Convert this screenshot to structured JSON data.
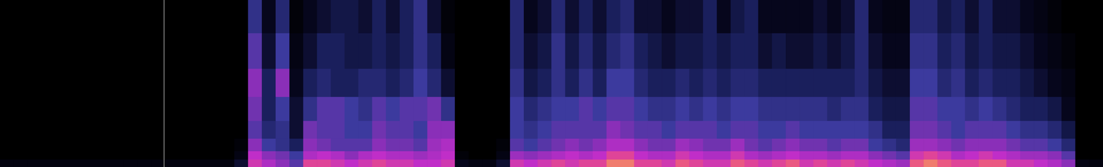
{
  "chart_data": {
    "type": "heatmap",
    "y_edges": [
      0,
      0.35,
      0.75,
      1.35,
      2.2,
      3.35,
      4.7,
      6.4,
      8
    ],
    "ylim": [
      0,
      8
    ],
    "color_range": [
      0,
      1
    ],
    "cursor_x": 11.4,
    "tick_labels": false,
    "grid": false,
    "cells": [
      [
        0.08,
        0.08,
        0.08,
        0.08,
        0.08,
        0.08,
        0.08,
        0.08,
        0.08,
        0.08,
        0.08,
        0.08,
        0.08,
        0.08,
        0.08,
        0.08,
        0.08,
        0.2,
        0.8,
        0.7,
        0.6,
        0.5,
        0.85,
        0.85,
        0.8,
        0.75,
        0.8,
        0.85,
        0.8,
        0.8,
        0.75,
        0.75,
        0.8,
        0.15,
        0.1,
        0.1,
        0.2,
        0.8,
        0.75,
        0.8,
        0.85,
        0.8,
        0.85,
        0.85,
        0.95,
        0.95,
        0.85,
        0.85,
        0.8,
        0.9,
        0.85,
        0.8,
        0.8,
        0.9,
        0.85,
        0.8,
        0.85,
        0.9,
        0.8,
        0.85,
        0.8,
        0.85,
        0.8,
        0.75,
        0.7,
        0.65,
        0.9,
        0.95,
        0.9,
        0.85,
        0.85,
        0.9,
        0.9,
        0.8,
        0.8,
        0.75,
        0.7,
        0.6,
        0.1,
        0.08
      ],
      [
        0,
        0,
        0,
        0,
        0,
        0,
        0,
        0,
        0,
        0,
        0,
        0,
        0,
        0,
        0,
        0,
        0,
        0.1,
        0.75,
        0.6,
        0.55,
        0.45,
        0.7,
        0.75,
        0.7,
        0.6,
        0.7,
        0.75,
        0.7,
        0.7,
        0.65,
        0.7,
        0.75,
        0.05,
        0,
        0,
        0.1,
        0.65,
        0.6,
        0.65,
        0.7,
        0.75,
        0.7,
        0.75,
        0.85,
        0.85,
        0.75,
        0.7,
        0.7,
        0.8,
        0.75,
        0.7,
        0.7,
        0.8,
        0.7,
        0.65,
        0.7,
        0.75,
        0.7,
        0.7,
        0.65,
        0.7,
        0.7,
        0.6,
        0.55,
        0.5,
        0.8,
        0.85,
        0.8,
        0.7,
        0.75,
        0.8,
        0.75,
        0.7,
        0.65,
        0.65,
        0.6,
        0.5,
        0,
        0
      ],
      [
        0,
        0,
        0,
        0,
        0,
        0,
        0,
        0,
        0,
        0,
        0,
        0,
        0,
        0,
        0,
        0,
        0,
        0.05,
        0.6,
        0.45,
        0.4,
        0.3,
        0.6,
        0.55,
        0.5,
        0.5,
        0.5,
        0.6,
        0.55,
        0.55,
        0.5,
        0.65,
        0.7,
        0,
        0,
        0,
        0.05,
        0.5,
        0.45,
        0.5,
        0.55,
        0.6,
        0.55,
        0.6,
        0.7,
        0.7,
        0.6,
        0.55,
        0.55,
        0.65,
        0.6,
        0.55,
        0.55,
        0.65,
        0.55,
        0.5,
        0.55,
        0.6,
        0.55,
        0.55,
        0.5,
        0.55,
        0.55,
        0.45,
        0.4,
        0.35,
        0.65,
        0.65,
        0.6,
        0.55,
        0.6,
        0.6,
        0.6,
        0.55,
        0.5,
        0.5,
        0.45,
        0.35,
        0,
        0
      ],
      [
        0,
        0,
        0,
        0,
        0,
        0,
        0,
        0,
        0,
        0,
        0,
        0,
        0,
        0,
        0,
        0,
        0,
        0,
        0.5,
        0.35,
        0.4,
        0.2,
        0.55,
        0.5,
        0.5,
        0.45,
        0.45,
        0.55,
        0.5,
        0.5,
        0.45,
        0.6,
        0.6,
        0,
        0,
        0,
        0,
        0.45,
        0.4,
        0.45,
        0.5,
        0.5,
        0.5,
        0.5,
        0.6,
        0.55,
        0.5,
        0.5,
        0.45,
        0.5,
        0.5,
        0.5,
        0.45,
        0.5,
        0.5,
        0.45,
        0.45,
        0.5,
        0.45,
        0.45,
        0.45,
        0.45,
        0.45,
        0.4,
        0.3,
        0.3,
        0.55,
        0.55,
        0.5,
        0.45,
        0.5,
        0.5,
        0.5,
        0.45,
        0.4,
        0.4,
        0.35,
        0.25,
        0,
        0
      ],
      [
        0,
        0,
        0,
        0,
        0,
        0,
        0,
        0,
        0,
        0,
        0,
        0,
        0,
        0,
        0,
        0,
        0,
        0,
        0.55,
        0.3,
        0.45,
        0.2,
        0.4,
        0.5,
        0.5,
        0.45,
        0.4,
        0.5,
        0.45,
        0.5,
        0.5,
        0.55,
        0.4,
        0,
        0,
        0,
        0,
        0.45,
        0.35,
        0.4,
        0.45,
        0.45,
        0.5,
        0.45,
        0.5,
        0.5,
        0.45,
        0.4,
        0.4,
        0.45,
        0.4,
        0.45,
        0.4,
        0.45,
        0.45,
        0.4,
        0.4,
        0.4,
        0.4,
        0.4,
        0.35,
        0.4,
        0.4,
        0.3,
        0.25,
        0.25,
        0.5,
        0.5,
        0.45,
        0.45,
        0.4,
        0.45,
        0.4,
        0.35,
        0.3,
        0.3,
        0.25,
        0.15,
        0,
        0
      ],
      [
        0,
        0,
        0,
        0,
        0,
        0,
        0,
        0,
        0,
        0,
        0,
        0,
        0,
        0,
        0,
        0,
        0,
        0,
        0.6,
        0.3,
        0.6,
        0.15,
        0.3,
        0.35,
        0.3,
        0.3,
        0.35,
        0.35,
        0.3,
        0.35,
        0.45,
        0.35,
        0.2,
        0,
        0,
        0,
        0,
        0.4,
        0.25,
        0.3,
        0.4,
        0.3,
        0.4,
        0.3,
        0.45,
        0.45,
        0.35,
        0.3,
        0.3,
        0.35,
        0.3,
        0.35,
        0.3,
        0.35,
        0.35,
        0.3,
        0.3,
        0.3,
        0.3,
        0.3,
        0.3,
        0.3,
        0.35,
        0.25,
        0.2,
        0.2,
        0.45,
        0.45,
        0.35,
        0.4,
        0.3,
        0.35,
        0.3,
        0.3,
        0.25,
        0.2,
        0.15,
        0.1,
        0,
        0
      ],
      [
        0,
        0,
        0,
        0,
        0,
        0,
        0,
        0,
        0,
        0,
        0,
        0,
        0,
        0,
        0,
        0,
        0,
        0,
        0.5,
        0.2,
        0.45,
        0.1,
        0.2,
        0.3,
        0.3,
        0.25,
        0.25,
        0.3,
        0.25,
        0.3,
        0.4,
        0.3,
        0.1,
        0,
        0,
        0,
        0,
        0.35,
        0.2,
        0.25,
        0.4,
        0.25,
        0.35,
        0.25,
        0.35,
        0.4,
        0.3,
        0.25,
        0.2,
        0.25,
        0.25,
        0.3,
        0.25,
        0.3,
        0.3,
        0.2,
        0.25,
        0.2,
        0.2,
        0.25,
        0.2,
        0.25,
        0.35,
        0.2,
        0.15,
        0.15,
        0.4,
        0.4,
        0.3,
        0.35,
        0.25,
        0.3,
        0.25,
        0.25,
        0.2,
        0.15,
        0.1,
        0.05,
        0,
        0
      ],
      [
        0,
        0,
        0,
        0,
        0,
        0,
        0,
        0,
        0,
        0,
        0,
        0,
        0,
        0,
        0,
        0,
        0,
        0,
        0.4,
        0.15,
        0.35,
        0.05,
        0.15,
        0.2,
        0.25,
        0.25,
        0.2,
        0.3,
        0.2,
        0.3,
        0.4,
        0.2,
        0.05,
        0,
        0,
        0,
        0,
        0.35,
        0.15,
        0.2,
        0.35,
        0.2,
        0.3,
        0.2,
        0.3,
        0.35,
        0.2,
        0.2,
        0.15,
        0.2,
        0.2,
        0.3,
        0.15,
        0.25,
        0.3,
        0.15,
        0.15,
        0.15,
        0.15,
        0.2,
        0.15,
        0.2,
        0.35,
        0.15,
        0.1,
        0.1,
        0.35,
        0.35,
        0.25,
        0.3,
        0.2,
        0.3,
        0.2,
        0.2,
        0.15,
        0.1,
        0.05,
        0,
        0,
        0
      ]
    ]
  }
}
